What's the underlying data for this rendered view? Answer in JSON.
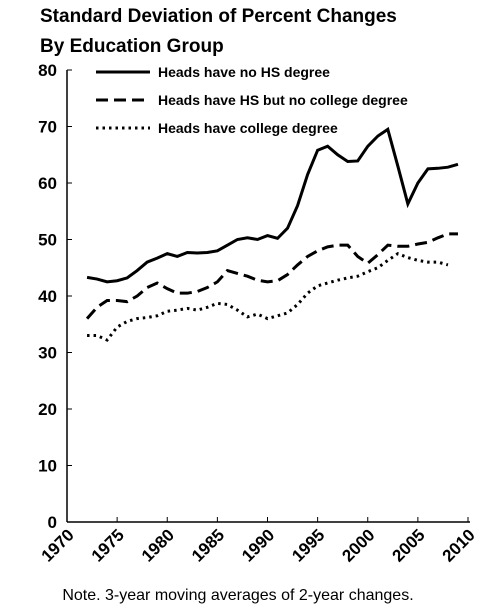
{
  "chart_data": {
    "type": "line",
    "title": "Standard Deviation of Percent Changes",
    "subtitle": "By Education Group",
    "note": "Note. 3-year moving averages of 2-year changes.",
    "xlim": [
      1970,
      2010
    ],
    "xticks": [
      1970,
      1975,
      1980,
      1985,
      1990,
      1995,
      2000,
      2005,
      2010
    ],
    "ylim": [
      0,
      80
    ],
    "yticks": [
      0,
      10,
      20,
      30,
      40,
      50,
      60,
      70,
      80
    ],
    "legend": "top-left",
    "series": [
      {
        "name": "Heads have no HS degree",
        "color": "#000000",
        "style": "solid",
        "x": [
          1972,
          1973,
          1974,
          1975,
          1976,
          1977,
          1978,
          1979,
          1980,
          1981,
          1982,
          1983,
          1984,
          1985,
          1986,
          1987,
          1988,
          1989,
          1990,
          1991,
          1992,
          1993,
          1994,
          1995,
          1996,
          1997,
          1998,
          1999,
          2000,
          2001,
          2002,
          2003,
          2004,
          2005,
          2006,
          2007,
          2008,
          2009
        ],
        "values": [
          43.3,
          43,
          42.5,
          42.7,
          43.2,
          44.5,
          46,
          46.7,
          47.5,
          47,
          47.7,
          47.6,
          47.7,
          48,
          49,
          50,
          50.3,
          50,
          50.7,
          50.2,
          52,
          56,
          61.5,
          65.8,
          66.5,
          65,
          63.8,
          63.9,
          66.5,
          68.3,
          69.5,
          63,
          56.3,
          60,
          62.5,
          62.6,
          62.8,
          63.3
        ]
      },
      {
        "name": "Heads have HS but no college degree",
        "color": "#000000",
        "style": "dashed",
        "x": [
          1972,
          1973,
          1974,
          1975,
          1976,
          1977,
          1978,
          1979,
          1980,
          1981,
          1982,
          1983,
          1984,
          1985,
          1986,
          1987,
          1988,
          1989,
          1990,
          1991,
          1992,
          1993,
          1994,
          1995,
          1996,
          1997,
          1998,
          1999,
          2000,
          2001,
          2002,
          2003,
          2004,
          2005,
          2006,
          2007,
          2008,
          2009
        ],
        "values": [
          36,
          38,
          39.2,
          39.2,
          39,
          40,
          41.5,
          42.3,
          41.3,
          40.5,
          40.5,
          40.8,
          41.5,
          42.5,
          44.5,
          44,
          43.5,
          42.8,
          42.5,
          42.7,
          43.8,
          45.5,
          47,
          48,
          48.7,
          49,
          49,
          47,
          45.8,
          47.3,
          49,
          48.8,
          48.8,
          49.2,
          49.5,
          50.3,
          51,
          51
        ]
      },
      {
        "name": "Heads have college degree",
        "color": "#000000",
        "style": "dotted",
        "x": [
          1972,
          1973,
          1974,
          1975,
          1976,
          1977,
          1978,
          1979,
          1980,
          1981,
          1982,
          1983,
          1984,
          1985,
          1986,
          1987,
          1988,
          1989,
          1990,
          1991,
          1992,
          1993,
          1994,
          1995,
          1996,
          1997,
          1998,
          1999,
          2000,
          2001,
          2002,
          2003,
          2004,
          2005,
          2006,
          2007,
          2008
        ],
        "values": [
          33,
          33,
          32.2,
          34.5,
          35.5,
          36,
          36.2,
          36.5,
          37.3,
          37.5,
          37.8,
          37.5,
          38,
          38.7,
          38.5,
          37.5,
          36.3,
          36.8,
          36,
          36.5,
          37,
          38.5,
          40.5,
          41.8,
          42.3,
          42.8,
          43.2,
          43.5,
          44.3,
          45,
          46.3,
          47.5,
          46.8,
          46.3,
          46,
          46,
          45.5
        ]
      }
    ]
  }
}
